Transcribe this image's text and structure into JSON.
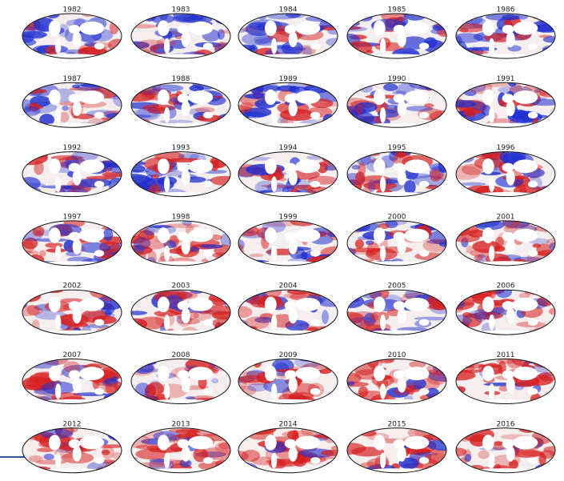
{
  "maps": {
    "titles": [
      "1982",
      "1983",
      "1984",
      "1985",
      "1986",
      "1987",
      "1988",
      "1989",
      "1990",
      "1991",
      "1992",
      "1993",
      "1994",
      "1995",
      "1996",
      "1997",
      "1998",
      "1999",
      "2000",
      "2001",
      "2002",
      "2003",
      "2004",
      "2005",
      "2006",
      "2007",
      "2008",
      "2009",
      "2010",
      "2011",
      "2012",
      "2013",
      "2014",
      "2015",
      "2016"
    ]
  }
}
